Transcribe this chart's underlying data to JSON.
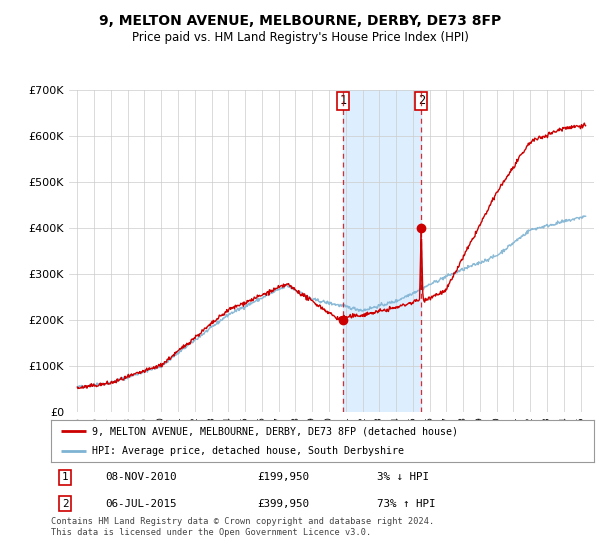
{
  "title": "9, MELTON AVENUE, MELBOURNE, DERBY, DE73 8FP",
  "subtitle": "Price paid vs. HM Land Registry's House Price Index (HPI)",
  "ylim": [
    0,
    700000
  ],
  "yticks": [
    0,
    100000,
    200000,
    300000,
    400000,
    500000,
    600000,
    700000
  ],
  "ytick_labels": [
    "£0",
    "£100K",
    "£200K",
    "£300K",
    "£400K",
    "£500K",
    "£600K",
    "£700K"
  ],
  "sale1_year": 2010.85,
  "sale1_price": 199950,
  "sale2_year": 2015.5,
  "sale2_price": 399950,
  "sale1_label": "1",
  "sale2_label": "2",
  "sale1_date": "08-NOV-2010",
  "sale1_amount": "£199,950",
  "sale1_hpi": "3% ↓ HPI",
  "sale2_date": "06-JUL-2015",
  "sale2_amount": "£399,950",
  "sale2_hpi": "73% ↑ HPI",
  "legend_line1": "9, MELTON AVENUE, MELBOURNE, DERBY, DE73 8FP (detached house)",
  "legend_line2": "HPI: Average price, detached house, South Derbyshire",
  "footer": "Contains HM Land Registry data © Crown copyright and database right 2024.\nThis data is licensed under the Open Government Licence v3.0.",
  "price_color": "#cc0000",
  "hpi_color": "#7fb3d3",
  "vline_color": "#cc0000",
  "background_color": "#ffffff",
  "grid_color": "#cccccc",
  "span_color": "#ddeeff"
}
